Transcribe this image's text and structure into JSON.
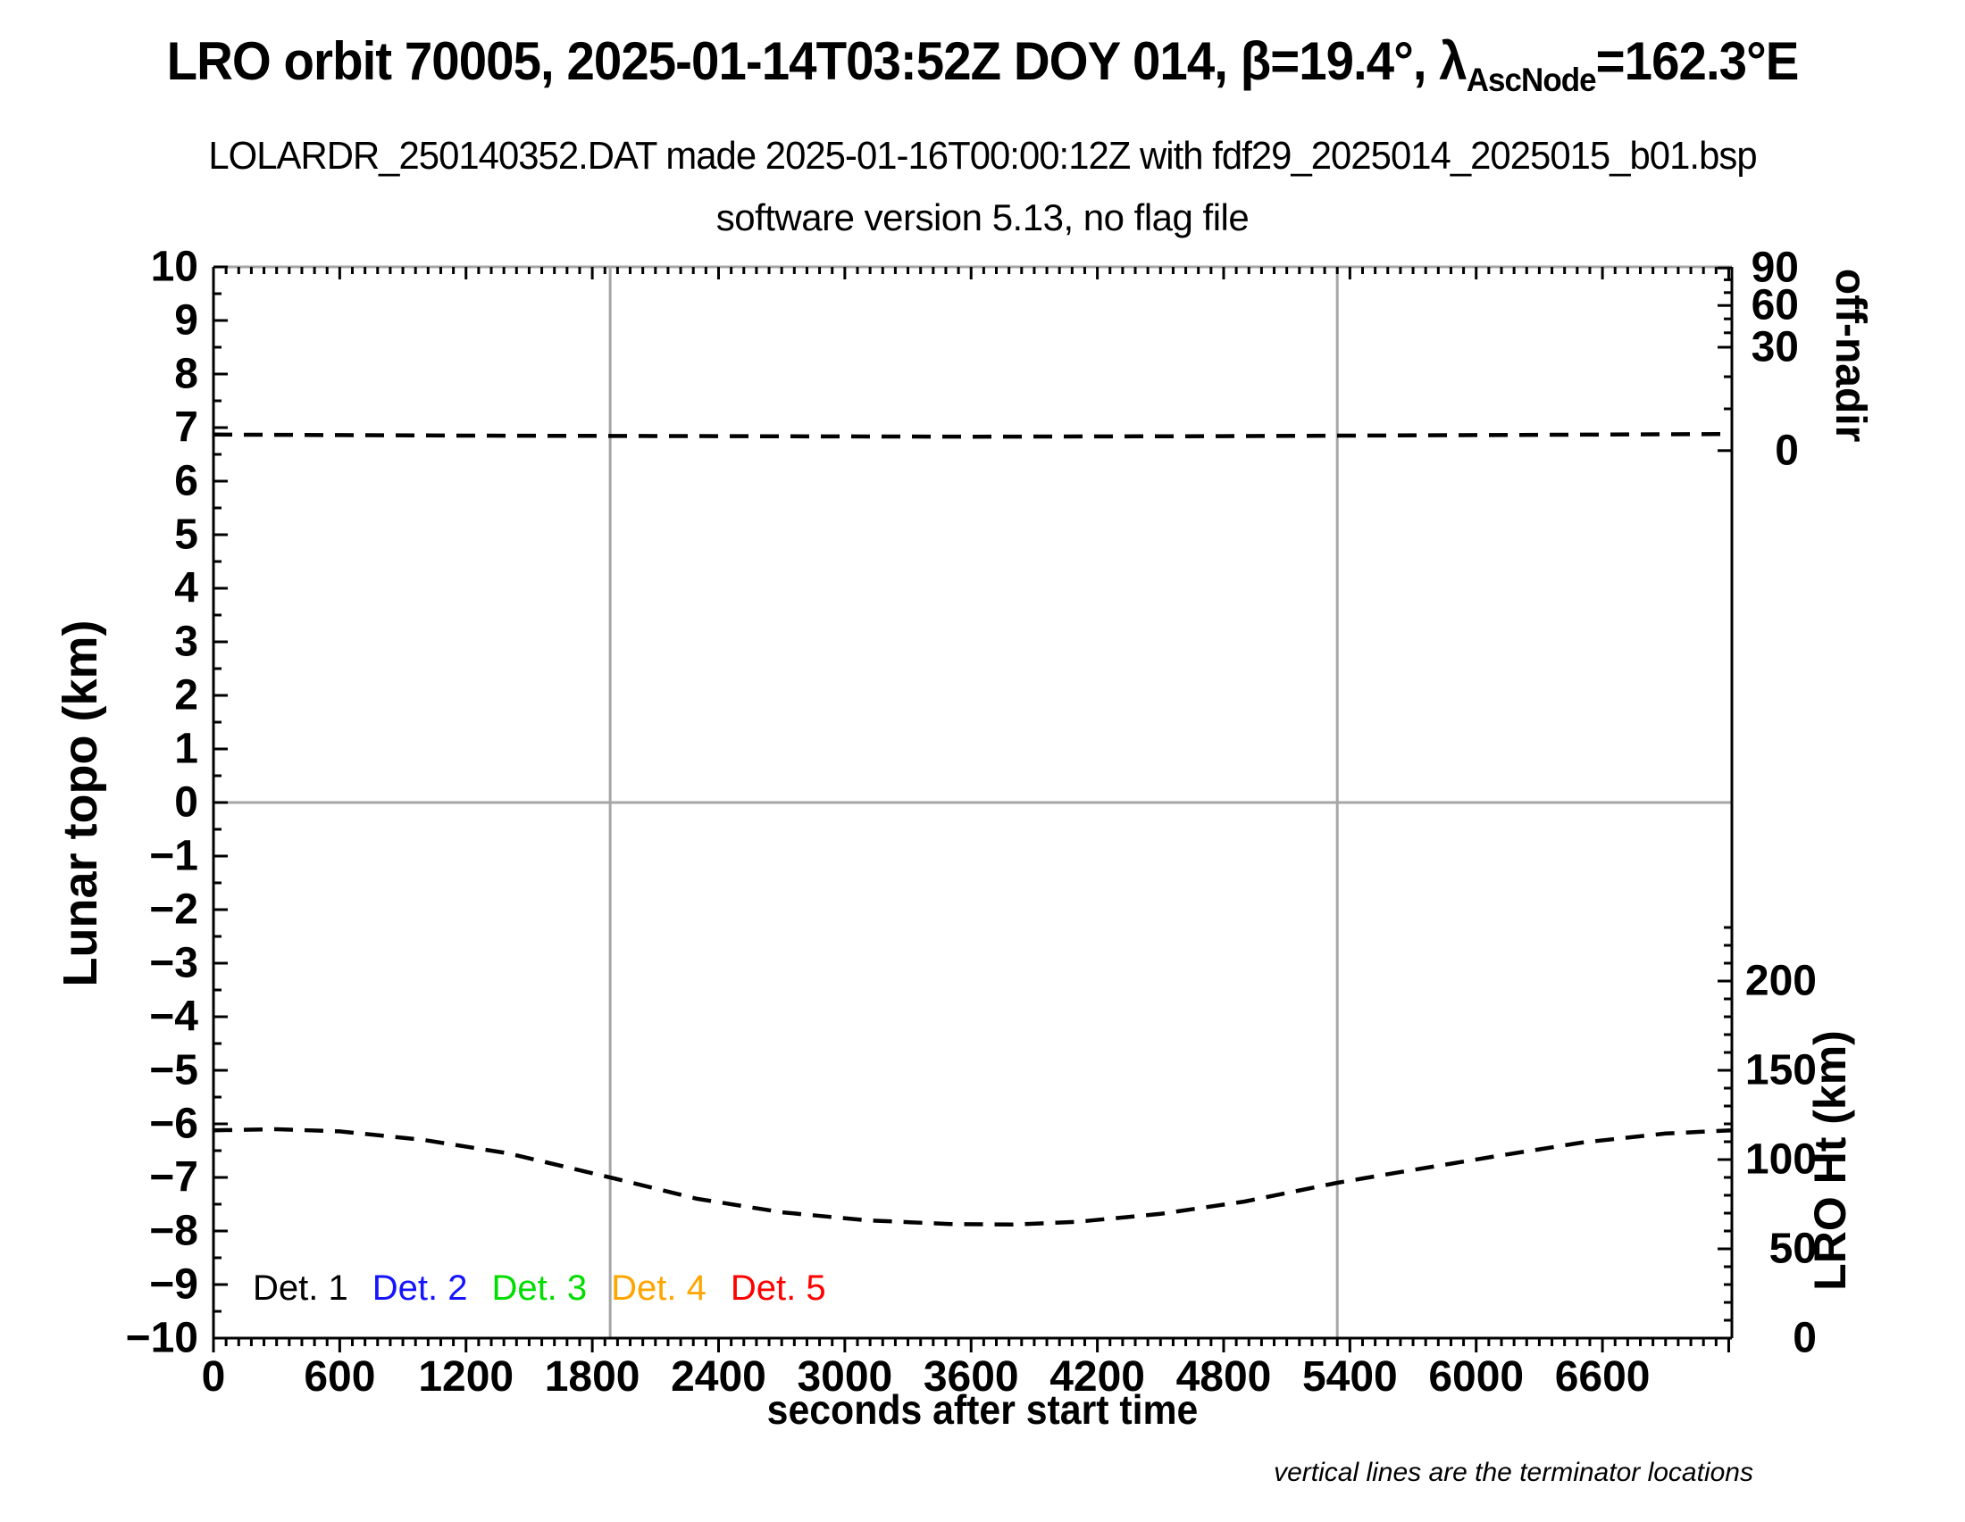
{
  "header": {
    "title_pre": "LRO orbit 70005, 2025-01-14T03:52Z DOY 014, β=19.4°, λ",
    "title_sub": "AscNode",
    "title_post": "=162.3°E",
    "subtitle": "LOLARDR_250140352.DAT made 2025-01-16T00:00:12Z with fdf29_2025014_2025015_b01.bsp",
    "subtitle2": "software version 5.13, no flag file"
  },
  "note": "vertical lines are the terminator locations",
  "colors": {
    "foreground": "#000000",
    "grid_gray": "#a6a6a6",
    "det1": "#000000",
    "det2": "#1414ff",
    "det3": "#00dd00",
    "det4": "#ffa500",
    "det5": "#ff0000"
  },
  "legend": [
    {
      "label": "Det. 1",
      "color": "#000000"
    },
    {
      "label": "Det. 2",
      "color": "#1414ff"
    },
    {
      "label": "Det. 3",
      "color": "#00dd00"
    },
    {
      "label": "Det. 4",
      "color": "#ffa500"
    },
    {
      "label": "Det. 5",
      "color": "#ff0000"
    }
  ],
  "chart_data": {
    "type": "line",
    "xlabel": "seconds after start time",
    "ylabel_left": "Lunar topo (km)",
    "ylabel_right_top": "off-nadir",
    "ylabel_right_bottom": "LRO Ht (km)",
    "xlim": [
      0,
      7215
    ],
    "ylim_left": [
      -10,
      10
    ],
    "x_major_ticks": [
      0,
      600,
      1200,
      1800,
      2400,
      3000,
      3600,
      4200,
      4800,
      5400,
      6000,
      6600
    ],
    "x_minor_step": 60,
    "y_left_major_step": 1,
    "y_left_minor_step": 0.5,
    "grid": "y=0 gray line only",
    "offnadir_axis": {
      "ticks": [
        {
          "label": "90",
          "topo_y": 9.98
        },
        {
          "label": "60",
          "topo_y": 9.28
        },
        {
          "label": "30",
          "topo_y": 8.5
        },
        {
          "label": "0",
          "topo_y": 6.57
        }
      ],
      "minor_topo_y": [
        9.76,
        9.52,
        9.03,
        8.77,
        7.95,
        7.35
      ]
    },
    "lro_ht_axis": {
      "tick_labels_km": [
        0,
        50,
        100,
        150,
        200
      ],
      "km_per_topo_unit": 30,
      "topo_y_of_zero_km": -10,
      "minor_step_km": 10,
      "minor_max_km": 230
    },
    "terminator_lines_s": [
      1885,
      5340
    ],
    "horizontal_gridline_topo_y": 0,
    "series": [
      {
        "name": "off-nadir angle",
        "style": "dashed-black",
        "approx_value": "flat, ≈0° off-nadir (plotted near topo 6.85)",
        "points_s_topo": [
          [
            0,
            6.87
          ],
          [
            1200,
            6.85
          ],
          [
            2400,
            6.84
          ],
          [
            3600,
            6.83
          ],
          [
            4800,
            6.84
          ],
          [
            6000,
            6.86
          ],
          [
            7215,
            6.88
          ]
        ]
      },
      {
        "name": "LRO height",
        "style": "dashed-black",
        "height_km_range": "≈64 km at minimum (t≈3800 s) to ≈117 km at ends",
        "points_s_topo": [
          [
            0,
            -6.12
          ],
          [
            300,
            -6.1
          ],
          [
            600,
            -6.14
          ],
          [
            1000,
            -6.3
          ],
          [
            1400,
            -6.55
          ],
          [
            1885,
            -7.0
          ],
          [
            2300,
            -7.4
          ],
          [
            2700,
            -7.65
          ],
          [
            3100,
            -7.8
          ],
          [
            3500,
            -7.87
          ],
          [
            3800,
            -7.88
          ],
          [
            4100,
            -7.83
          ],
          [
            4500,
            -7.68
          ],
          [
            4900,
            -7.45
          ],
          [
            5340,
            -7.1
          ],
          [
            5700,
            -6.86
          ],
          [
            6100,
            -6.6
          ],
          [
            6500,
            -6.35
          ],
          [
            6900,
            -6.18
          ],
          [
            7215,
            -6.12
          ]
        ]
      }
    ]
  }
}
